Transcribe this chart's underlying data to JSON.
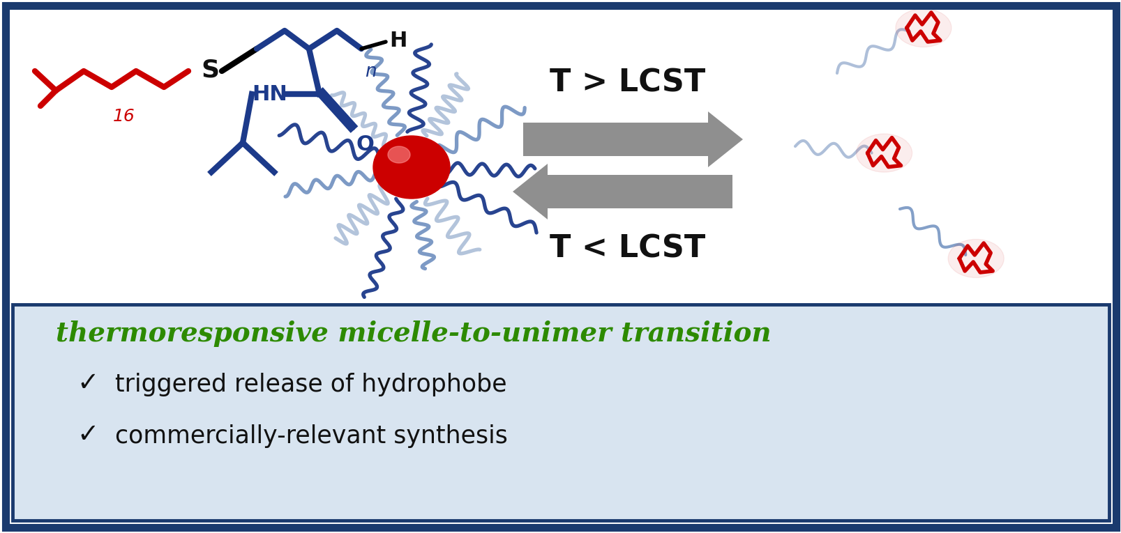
{
  "bg_color": "#ffffff",
  "border_color": "#1a3a6e",
  "red_color": "#cc0000",
  "blue_color": "#1c3a8a",
  "light_blue": "#6688bb",
  "light_blue2": "#9ab0d0",
  "black_color": "#111111",
  "green_color": "#2d8a00",
  "arrow_gray": "#808080",
  "title_text": "thermoresponsive micelle-to-unimer transition",
  "bullet1": "triggered release of hydrophobe",
  "bullet2": "commercially-relevant synthesis",
  "top_label": "T > LCST",
  "bottom_label": "T < LCST",
  "bottom_box_bg": "#d8e4f0"
}
